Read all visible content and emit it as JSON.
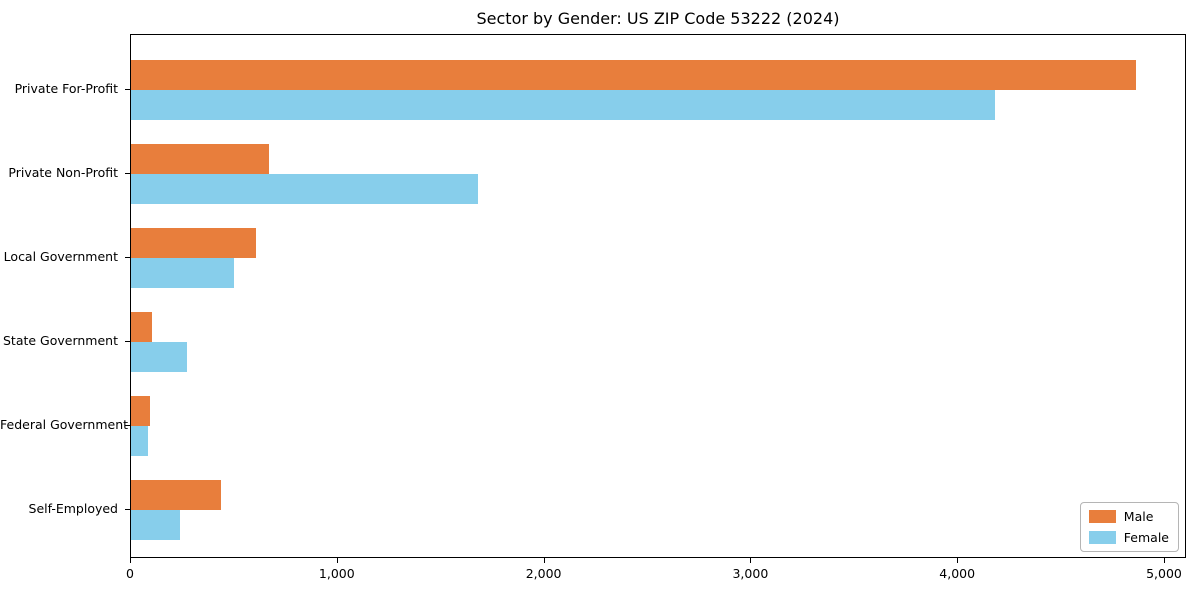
{
  "chart_data": {
    "type": "bar",
    "orientation": "horizontal",
    "title": "Sector by Gender: US ZIP Code 53222 (2024)",
    "categories": [
      "Private For-Profit",
      "Private Non-Profit",
      "Local Government",
      "State Government",
      "Federal Government",
      "Self-Employed"
    ],
    "series": [
      {
        "name": "Male",
        "color": "#E87E3C",
        "values": [
          4860,
          665,
          605,
          100,
          90,
          435
        ]
      },
      {
        "name": "Female",
        "color": "#87CEEB",
        "values": [
          4180,
          1680,
          500,
          270,
          80,
          235
        ]
      }
    ],
    "xlabel": "",
    "ylabel": "",
    "xlim": [
      0,
      5000
    ],
    "xticks": [
      0,
      1000,
      2000,
      3000,
      4000,
      5000
    ],
    "xtick_labels": [
      "0",
      "1,000",
      "2,000",
      "3,000",
      "4,000",
      "5,000"
    ],
    "grid": false,
    "legend_position": "lower right"
  }
}
